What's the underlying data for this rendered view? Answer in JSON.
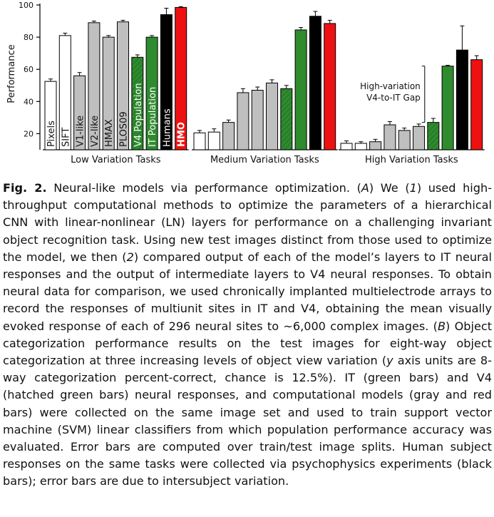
{
  "chart_data": {
    "type": "bar",
    "ylabel": "Performance",
    "ylim": [
      10,
      100
    ],
    "yticks": [
      20,
      40,
      60,
      80,
      100
    ],
    "groups": [
      {
        "name": "Low Variation Tasks",
        "bars": [
          {
            "label": "Pixels",
            "value": 52.5,
            "error": 1.5,
            "fill": "#ffffff",
            "hatch": false
          },
          {
            "label": "SIFT",
            "value": 81,
            "error": 1.5,
            "fill": "#ffffff",
            "hatch": false
          },
          {
            "label": "V1-like",
            "value": 56,
            "error": 2,
            "fill": "#bfbfbf",
            "hatch": false
          },
          {
            "label": "V2-like",
            "value": 89,
            "error": 1,
            "fill": "#bfbfbf",
            "hatch": false
          },
          {
            "label": "HMAX",
            "value": 80,
            "error": 1,
            "fill": "#bfbfbf",
            "hatch": false
          },
          {
            "label": "PLOS09",
            "value": 89.5,
            "error": 1,
            "fill": "#bfbfbf",
            "hatch": false
          },
          {
            "label": "V4 Population",
            "value": 67.5,
            "error": 1.5,
            "fill": "#2e8b2e",
            "hatch": true
          },
          {
            "label": "IT Population",
            "value": 80,
            "error": 1,
            "fill": "#2e8b2e",
            "hatch": false
          },
          {
            "label": "Humans",
            "value": 94,
            "error": 4,
            "fill": "#000000",
            "hatch": false
          },
          {
            "label": "HMO",
            "value": 98.5,
            "error": 0.5,
            "fill": "#ee1111",
            "hatch": false
          }
        ]
      },
      {
        "name": "Medium Variation Tasks",
        "bars": [
          {
            "label": "Pixels",
            "value": 20.5,
            "error": 1.5,
            "fill": "#ffffff",
            "hatch": false
          },
          {
            "label": "SIFT",
            "value": 21,
            "error": 2,
            "fill": "#ffffff",
            "hatch": false
          },
          {
            "label": "V1-like",
            "value": 27,
            "error": 1.5,
            "fill": "#bfbfbf",
            "hatch": false
          },
          {
            "label": "V2-like",
            "value": 45.5,
            "error": 2.5,
            "fill": "#bfbfbf",
            "hatch": false
          },
          {
            "label": "HMAX",
            "value": 47,
            "error": 2,
            "fill": "#bfbfbf",
            "hatch": false
          },
          {
            "label": "PLOS09",
            "value": 51.5,
            "error": 2,
            "fill": "#bfbfbf",
            "hatch": false
          },
          {
            "label": "V4 Population",
            "value": 48,
            "error": 2,
            "fill": "#2e8b2e",
            "hatch": true
          },
          {
            "label": "IT Population",
            "value": 84.5,
            "error": 1.5,
            "fill": "#2e8b2e",
            "hatch": false
          },
          {
            "label": "Humans",
            "value": 93,
            "error": 3,
            "fill": "#000000",
            "hatch": false
          },
          {
            "label": "HMO",
            "value": 88.5,
            "error": 2,
            "fill": "#ee1111",
            "hatch": false
          }
        ]
      },
      {
        "name": "High Variation Tasks",
        "bars": [
          {
            "label": "Pixels",
            "value": 14,
            "error": 1.5,
            "fill": "#ffffff",
            "hatch": false
          },
          {
            "label": "SIFT",
            "value": 14,
            "error": 1,
            "fill": "#ffffff",
            "hatch": false
          },
          {
            "label": "V1-like",
            "value": 15,
            "error": 1.5,
            "fill": "#bfbfbf",
            "hatch": false
          },
          {
            "label": "V2-like",
            "value": 25.5,
            "error": 2,
            "fill": "#bfbfbf",
            "hatch": false
          },
          {
            "label": "HMAX",
            "value": 22,
            "error": 1.5,
            "fill": "#bfbfbf",
            "hatch": false
          },
          {
            "label": "PLOS09",
            "value": 24.5,
            "error": 1.5,
            "fill": "#bfbfbf",
            "hatch": false
          },
          {
            "label": "V4 Population",
            "value": 27,
            "error": 2.5,
            "fill": "#2e8b2e",
            "hatch": true
          },
          {
            "label": "IT Population",
            "value": 62,
            "error": 0.5,
            "fill": "#2e8b2e",
            "hatch": false
          },
          {
            "label": "Humans",
            "value": 72,
            "error": 15,
            "fill": "#000000",
            "hatch": false
          },
          {
            "label": "HMO",
            "value": 66,
            "error": 2.5,
            "fill": "#ee1111",
            "hatch": false
          }
        ]
      }
    ],
    "annotation": {
      "lines": [
        "High-variation",
        "V4-to-IT Gap"
      ],
      "from_value": 27,
      "to_value": 62
    },
    "colors": {
      "white_bar": "#ffffff",
      "gray_bar": "#bfbfbf",
      "green_bar": "#2e8b2e",
      "black_bar": "#000000",
      "red_bar": "#ee1111"
    }
  },
  "caption": {
    "label": "Fig. 2.",
    "text": "Neural-like models via performance optimization. (A) We (1) used high-throughput computational methods to optimize the parameters of a hierarchical CNN with linear-nonlinear (LN) layers for performance on a challenging invariant object recognition task. Using new test images distinct from those used to optimize the model, we then (2) compared output of each of the model’s layers to IT neural responses and the output of intermediate layers to V4 neural responses. To obtain neural data for comparison, we used chronically implanted multielectrode arrays to record the responses of multiunit sites in IT and V4, obtaining the mean visually evoked response of each of 296 neural sites to ∼6,000 complex images. (B) Object categorization performance results on the test images for eight-way object categorization at three increasing levels of object view variation (y axis units are 8-way categorization percent-correct, chance is 12.5%). IT (green bars) and V4 (hatched green bars) neural responses, and computational models (gray and red bars) were collected on the same image set and used to train support vector machine (SVM) linear classifiers from which population performance accuracy was evaluated. Error bars are computed over train/test image splits. Human subject responses on the same tasks were collected via psychophysics experiments (black bars); error bars are due to intersubject variation."
  }
}
